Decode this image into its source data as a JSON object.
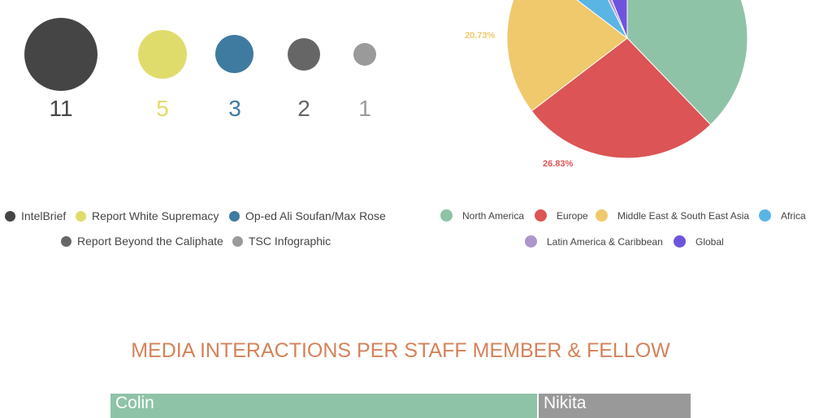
{
  "chart_data": [
    {
      "type": "bubble",
      "categories": [
        "IntelBrief",
        "Report White Supremacy",
        "Op-ed Ali Soufan/Max Rose",
        "Report Beyond the Caliphate",
        "TSC Infographic"
      ],
      "values": [
        11,
        5,
        3,
        2,
        1
      ],
      "labels": [
        "11",
        "5",
        "3",
        "2",
        "1"
      ],
      "colors": [
        "#454545",
        "#e0dc6c",
        "#3f7aa0",
        "#666666",
        "#9a9a9a"
      ],
      "legend_placement": "bottom"
    },
    {
      "type": "pie",
      "categories": [
        "North America",
        "Europe",
        "Middle East & South East Asia",
        "Africa",
        "Latin America & Caribbean",
        "Global"
      ],
      "values": [
        37.8,
        26.83,
        20.73,
        7.32,
        1.22,
        6.1
      ],
      "data_labels": {
        "Europe": "26.83%",
        "Middle East & South East Asia": "20.73%"
      },
      "colors": [
        "#8ec3a7",
        "#dc5455",
        "#efc96b",
        "#5bb5e4",
        "#ad95cd",
        "#6e54dc"
      ],
      "legend_placement": "bottom"
    },
    {
      "type": "bar",
      "stacked": true,
      "title": "MEDIA INTERACTIONS PER STAFF MEMBER & FELLOW",
      "categories": [
        "Colin",
        "Nikita"
      ],
      "values": [
        73.6,
        26.4
      ],
      "colors": [
        "#8ec3a7",
        "#999999"
      ]
    }
  ]
}
